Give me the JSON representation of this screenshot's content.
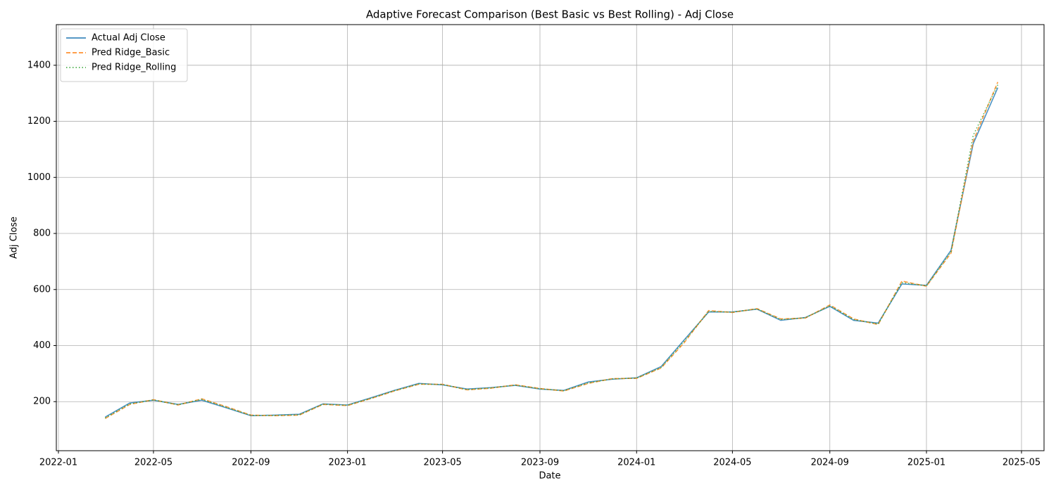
{
  "chart_data": {
    "type": "line",
    "title": "Adaptive Forecast Comparison (Best Basic vs Best Rolling) - Adj Close",
    "xlabel": "Date",
    "ylabel": "Adj Close",
    "x": [
      "2022-03",
      "2022-04",
      "2022-05",
      "2022-06",
      "2022-07",
      "2022-08",
      "2022-09",
      "2022-10",
      "2022-11",
      "2022-12",
      "2023-01",
      "2023-02",
      "2023-03",
      "2023-04",
      "2023-05",
      "2023-06",
      "2023-07",
      "2023-08",
      "2023-09",
      "2023-10",
      "2023-11",
      "2023-12",
      "2024-01",
      "2024-02",
      "2024-03",
      "2024-04",
      "2024-05",
      "2024-06",
      "2024-07",
      "2024-08",
      "2024-09",
      "2024-10",
      "2024-11",
      "2024-12",
      "2025-01",
      "2025-02",
      "2025-03",
      "2025-04"
    ],
    "series": [
      {
        "name": "Actual Adj Close",
        "color": "#1f77b4",
        "linestyle": "solid",
        "values": [
          145,
          195,
          205,
          190,
          205,
          178,
          150,
          152,
          155,
          192,
          188,
          215,
          240,
          265,
          260,
          245,
          250,
          258,
          245,
          240,
          270,
          280,
          285,
          325,
          420,
          520,
          520,
          530,
          490,
          500,
          540,
          490,
          480,
          620,
          615,
          740,
          1120,
          1320
        ]
      },
      {
        "name": "Pred Ridge_Basic",
        "color": "#ff7f0e",
        "linestyle": "dashed",
        "values": [
          140,
          190,
          207,
          188,
          210,
          182,
          152,
          150,
          152,
          190,
          186,
          212,
          238,
          262,
          262,
          242,
          248,
          260,
          247,
          238,
          265,
          282,
          283,
          320,
          410,
          525,
          518,
          532,
          495,
          498,
          545,
          495,
          475,
          630,
          612,
          730,
          1130,
          1340
        ]
      },
      {
        "name": "Pred Ridge_Rolling",
        "color": "#2ca02c",
        "linestyle": "dotted",
        "values": [
          142,
          192,
          206,
          189,
          208,
          180,
          151,
          151,
          153,
          191,
          187,
          213,
          239,
          263,
          261,
          243,
          249,
          259,
          246,
          239,
          267,
          281,
          284,
          322,
          415,
          522,
          519,
          531,
          493,
          499,
          542,
          493,
          477,
          625,
          613,
          735,
          1150,
          1330
        ]
      }
    ],
    "xlim": [
      "2022-01",
      "2025-05"
    ],
    "xticks": [
      "2022-01",
      "2022-05",
      "2022-09",
      "2023-01",
      "2023-05",
      "2023-09",
      "2024-01",
      "2024-05",
      "2024-09",
      "2025-01",
      "2025-05"
    ],
    "ylim": [
      25,
      1545
    ],
    "yticks": [
      200,
      400,
      600,
      800,
      1000,
      1200,
      1400
    ],
    "grid": true,
    "legend": "upper left"
  }
}
